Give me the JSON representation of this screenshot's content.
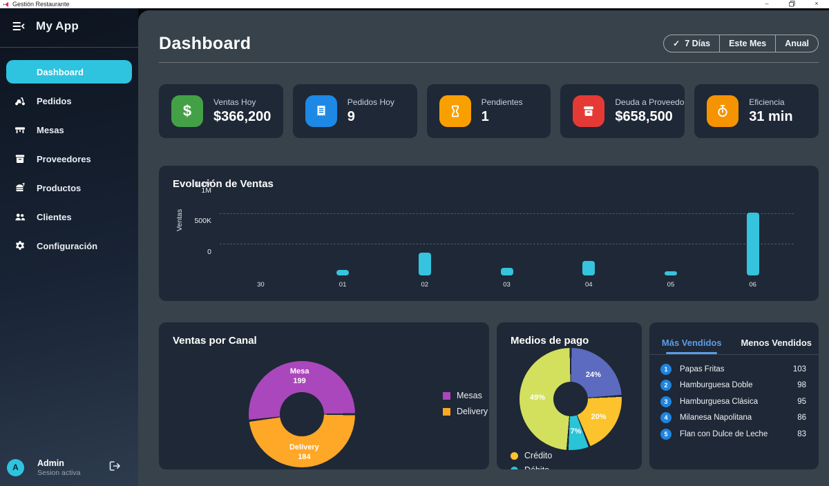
{
  "window": {
    "title": "Gestión Restaurante"
  },
  "sidebar": {
    "app_name": "My App",
    "items": [
      {
        "label": "Dashboard",
        "icon": "none",
        "active": true
      },
      {
        "label": "Pedidos",
        "icon": "scooter",
        "active": false
      },
      {
        "label": "Mesas",
        "icon": "table",
        "active": false
      },
      {
        "label": "Proveedores",
        "icon": "box",
        "active": false
      },
      {
        "label": "Productos",
        "icon": "burger",
        "active": false
      },
      {
        "label": "Clientes",
        "icon": "people",
        "active": false
      },
      {
        "label": "Configuración",
        "icon": "gear",
        "active": false
      }
    ],
    "user": {
      "initial": "A",
      "name": "Admin",
      "status": "Sesion activa"
    }
  },
  "header": {
    "title": "Dashboard",
    "range_buttons": [
      {
        "label": "7 Días",
        "selected": true
      },
      {
        "label": "Este Mes",
        "selected": false
      },
      {
        "label": "Anual",
        "selected": false
      }
    ]
  },
  "stats": [
    {
      "label": "Ventas Hoy",
      "value": "$366,200",
      "icon": "dollar",
      "color": "#43a047"
    },
    {
      "label": "Pedidos Hoy",
      "value": "9",
      "icon": "receipt",
      "color": "#1e88e5"
    },
    {
      "label": "Pendientes",
      "value": "1",
      "icon": "hourglass",
      "color": "#f9a000"
    },
    {
      "label": "Deuda a Proveedores",
      "value": "$658,500",
      "icon": "archive",
      "color": "#e53935"
    },
    {
      "label": "Eficiencia",
      "value": "31 min",
      "icon": "stopwatch",
      "color": "#f59300"
    }
  ],
  "chart_data": [
    {
      "type": "bar",
      "title": "Evolución de Ventas",
      "ylabel": "Ventas",
      "xlabel": "",
      "categories": [
        "30",
        "01",
        "02",
        "03",
        "04",
        "05",
        "06"
      ],
      "values": [
        0,
        95000,
        370000,
        125000,
        240000,
        65000,
        1020000
      ],
      "ylim": [
        0,
        1100000
      ],
      "yticks": [
        {
          "label": "1.1M",
          "value": 1100000
        },
        {
          "label": "1M",
          "value": 1000000
        },
        {
          "label": "500K",
          "value": 500000
        },
        {
          "label": "0",
          "value": 0
        }
      ],
      "gridline_values": [
        1000000,
        500000
      ],
      "grid": "dashed",
      "bar_color": "#36c3dd"
    },
    {
      "type": "doughnut",
      "title": "Ventas por Canal",
      "start_deg": 90,
      "slices": [
        {
          "label": "Delivery",
          "value": 184,
          "color": "#ffa726"
        },
        {
          "label": "Mesa",
          "value": 199,
          "color": "#ab47bc"
        }
      ],
      "legend": [
        {
          "label": "Mesas",
          "color": "#ab47bc"
        },
        {
          "label": "Delivery",
          "color": "#ffa726"
        }
      ],
      "legend_position": "right"
    },
    {
      "type": "doughnut",
      "title": "Medios de pago",
      "start_deg": 0,
      "slices": [
        {
          "label": "24%",
          "value": 24,
          "color": "#5c6bc0"
        },
        {
          "label": "20%",
          "value": 20,
          "color": "#fcc32c"
        },
        {
          "label": "7%",
          "value": 7,
          "color": "#29c5d6"
        },
        {
          "label": "49%",
          "value": 49,
          "color": "#d3e05e"
        }
      ],
      "legend": [
        {
          "label": "Crédito",
          "color": "#fcc32c"
        },
        {
          "label": "Débito",
          "color": "#29c5d6"
        }
      ],
      "legend_position": "bottom"
    }
  ],
  "top_products": {
    "tabs": [
      {
        "label": "Más Vendidos",
        "active": true
      },
      {
        "label": "Menos Vendidos",
        "active": false
      }
    ],
    "rows": [
      {
        "rank": "1",
        "name": "Papas Fritas",
        "count": "103"
      },
      {
        "rank": "2",
        "name": "Hamburguesa Doble",
        "count": "98"
      },
      {
        "rank": "3",
        "name": "Hamburguesa Clásica",
        "count": "95"
      },
      {
        "rank": "4",
        "name": "Milanesa Napolitana",
        "count": "86"
      },
      {
        "rank": "5",
        "name": "Flan con Dulce de Leche",
        "count": "83"
      }
    ]
  }
}
